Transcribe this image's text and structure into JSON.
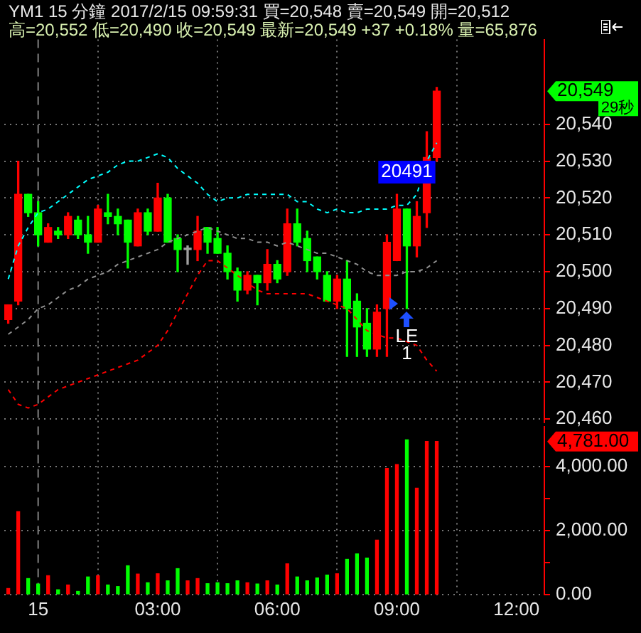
{
  "chart_data": [
    {
      "type": "candlestick",
      "title": "YM1 15 分鐘 2017/2/15 09:59:31 買=20,548 賣=20,549 開=20,512",
      "subtitle": "高=20,552 低=20,490 收=20,549 最新=20,549 +37 +0.18% 量=65,876",
      "x": [
        "2017-02-14T23:15",
        "2017-02-14T23:30",
        "2017-02-14T23:45",
        "2017-02-15T00:00",
        "2017-02-15T00:15",
        "2017-02-15T00:30",
        "2017-02-15T00:45",
        "2017-02-15T01:00",
        "2017-02-15T01:15",
        "2017-02-15T01:30",
        "2017-02-15T01:45",
        "2017-02-15T02:00",
        "2017-02-15T02:15",
        "2017-02-15T02:30",
        "2017-02-15T02:45",
        "2017-02-15T03:00",
        "2017-02-15T03:15",
        "2017-02-15T03:30",
        "2017-02-15T03:45",
        "2017-02-15T04:00",
        "2017-02-15T04:15",
        "2017-02-15T04:30",
        "2017-02-15T04:45",
        "2017-02-15T05:00",
        "2017-02-15T05:15",
        "2017-02-15T05:30",
        "2017-02-15T05:45",
        "2017-02-15T06:00",
        "2017-02-15T06:15",
        "2017-02-15T06:30",
        "2017-02-15T06:45",
        "2017-02-15T07:00",
        "2017-02-15T07:15",
        "2017-02-15T07:30",
        "2017-02-15T07:45",
        "2017-02-15T08:00",
        "2017-02-15T08:15",
        "2017-02-15T08:30",
        "2017-02-15T08:45",
        "2017-02-15T09:00",
        "2017-02-15T09:15",
        "2017-02-15T09:30",
        "2017-02-15T09:45",
        "2017-02-15T10:00"
      ],
      "ohlc": [
        [
          20487,
          20491,
          20486,
          20491
        ],
        [
          20492,
          20530,
          20491,
          20521
        ],
        [
          20521,
          20521,
          20515,
          20516
        ],
        [
          20516,
          20519,
          20507,
          20510
        ],
        [
          20508,
          20513,
          20508,
          20512
        ],
        [
          20511,
          20512,
          20509,
          20510
        ],
        [
          20510,
          20516,
          20509,
          20515
        ],
        [
          20514,
          20515,
          20509,
          20510
        ],
        [
          20510,
          20515,
          20505,
          20508
        ],
        [
          20508,
          20518,
          20508,
          20517
        ],
        [
          20516,
          20521,
          20513,
          20515
        ],
        [
          20515,
          20517,
          20510,
          20513
        ],
        [
          20514,
          20514,
          20501,
          20508
        ],
        [
          20507,
          20517,
          20507,
          20516
        ],
        [
          20516,
          20517,
          20510,
          20511
        ],
        [
          20511,
          20524,
          20511,
          20520
        ],
        [
          20520,
          20521,
          20508,
          20508
        ],
        [
          20509,
          20510,
          20500,
          20506
        ],
        [
          20506,
          20507,
          20502,
          20506
        ],
        [
          20506,
          20515,
          20503,
          20511
        ],
        [
          20512,
          20512,
          20505,
          20508
        ],
        [
          20509,
          20512,
          20505,
          20505
        ],
        [
          20505,
          20507,
          20498,
          20500
        ],
        [
          20500,
          20501,
          20492,
          20495
        ],
        [
          20495,
          20500,
          20494,
          20499
        ],
        [
          20499,
          20499,
          20491,
          20497
        ],
        [
          20497,
          20506,
          20495,
          20502
        ],
        [
          20502,
          20503,
          20497,
          20498
        ],
        [
          20500,
          20517,
          20499,
          20513
        ],
        [
          20513,
          20517,
          20507,
          20508
        ],
        [
          20509,
          20511,
          20500,
          20503
        ],
        [
          20504,
          20504,
          20498,
          20500
        ],
        [
          20499,
          20500,
          20492,
          20492
        ],
        [
          20492,
          20499,
          20490,
          20498
        ],
        [
          20498,
          20503,
          20477,
          20490
        ],
        [
          20492,
          20494,
          20477,
          20485
        ],
        [
          20486,
          20490,
          20477,
          20479
        ],
        [
          20479,
          20491,
          20477,
          20489
        ],
        [
          20490,
          20510,
          20477,
          20508
        ],
        [
          20503,
          20521,
          20503,
          20517
        ],
        [
          20517,
          20517,
          20490,
          20507
        ],
        [
          20507,
          20519,
          20504,
          20515
        ],
        [
          20516,
          20538,
          20512,
          20531
        ],
        [
          20531,
          20550,
          20530,
          20549
        ]
      ],
      "colors": [
        "#ff0000",
        "#ff0000",
        "#00ff00",
        "#00ff00",
        "#ff0000",
        "#00ff00",
        "#ff0000",
        "#00ff00",
        "#00ff00",
        "#ff0000",
        "#00ff00",
        "#00ff00",
        "#00ff00",
        "#ff0000",
        "#00ff00",
        "#ff0000",
        "#00ff00",
        "#00ff00",
        "#a0a0a0",
        "#ff0000",
        "#00ff00",
        "#00ff00",
        "#00ff00",
        "#00ff00",
        "#ff0000",
        "#00ff00",
        "#ff0000",
        "#00ff00",
        "#ff0000",
        "#00ff00",
        "#00ff00",
        "#00ff00",
        "#00ff00",
        "#ff0000",
        "#00ff00",
        "#00ff00",
        "#00ff00",
        "#ff0000",
        "#ff0000",
        "#ff0000",
        "#00ff00",
        "#ff0000",
        "#ff0000",
        "#ff0000"
      ],
      "series": [
        {
          "type": "line",
          "color": "#00ffff",
          "line_style": "dashed",
          "values": [
            20498,
            20507,
            20512,
            20516,
            20517,
            20519,
            20521,
            20523,
            20525,
            20526,
            20527,
            20529,
            20530,
            20530,
            20531,
            20532,
            20531,
            20528,
            20526,
            20524,
            20521,
            20519,
            20520,
            20520,
            20521,
            20521,
            20521,
            20521,
            20521,
            20519,
            20519,
            20517,
            20516,
            20517,
            20516,
            20516,
            20517,
            20517,
            20517,
            20518,
            20518,
            20521,
            20530,
            20535
          ]
        },
        {
          "type": "line",
          "color": "#909090",
          "line_style": "dashed",
          "values": [
            20483,
            20485,
            20487,
            20490,
            20491,
            20493,
            20495,
            20496,
            20498,
            20499,
            20500,
            20502,
            20503,
            20504,
            20505,
            20506,
            20508,
            20509,
            20510,
            20511,
            20512,
            20511,
            20510,
            20509,
            20509,
            20508,
            20508,
            20507,
            20508,
            20507,
            20506,
            20505,
            20505,
            20504,
            20503,
            20502,
            20500,
            20499,
            20499,
            20499,
            20500,
            20500,
            20501,
            20503
          ]
        },
        {
          "type": "line",
          "color": "#ff0000",
          "line_style": "dashed",
          "values": [
            20468,
            20464,
            20463,
            20464,
            20466,
            20468,
            20469,
            20470,
            20471,
            20472,
            20473,
            20474,
            20475,
            20476,
            20478,
            20480,
            20484,
            20489,
            20494,
            20499,
            20503,
            20503,
            20501,
            20499,
            20497,
            20495,
            20494,
            20494,
            20494,
            20494,
            20494,
            20493,
            20492,
            20491,
            20490,
            20487,
            20484,
            20483,
            20482,
            20482,
            20481,
            20480,
            20476,
            20473
          ]
        }
      ],
      "xlim": [
        "2017-02-14T23:09",
        "2017-02-15T12:42"
      ],
      "xticks": [
        {
          "value": "2017-02-15T00:00",
          "label": null
        },
        {
          "value": "2017-02-15T03:00",
          "label": null
        },
        {
          "value": "2017-02-15T06:00",
          "label": null
        },
        {
          "value": "2017-02-15T09:00",
          "label": null
        },
        {
          "value": "2017-02-15T12:00",
          "label": null
        }
      ],
      "ylim": [
        20459,
        20563
      ],
      "yticks": [
        {
          "value": 20460,
          "label": "20,460"
        },
        {
          "value": 20470,
          "label": "20,470"
        },
        {
          "value": 20480,
          "label": "20,480"
        },
        {
          "value": 20490,
          "label": "20,490"
        },
        {
          "value": 20500,
          "label": "20,500"
        },
        {
          "value": 20510,
          "label": "20,510"
        },
        {
          "value": 20520,
          "label": "20,520"
        },
        {
          "value": 20530,
          "label": "20,530"
        },
        {
          "value": 20540,
          "label": "20,540"
        }
      ],
      "ref_lines": [
        {
          "axis": "x",
          "value": "2017-02-15T00:00",
          "color": "#808080",
          "line_style": "dashed"
        }
      ],
      "annotations": [
        {
          "text": "20491",
          "x": "2017-02-15T09:15",
          "y": 20527
        },
        {
          "text": "LE",
          "x": "2017-02-15T09:15",
          "y": 20490
        },
        "1",
        "20,549",
        "29秒"
      ],
      "grid": true,
      "tick_labels": "y"
    },
    {
      "type": "bar",
      "x": [
        "2017-02-14T23:15",
        "2017-02-14T23:30",
        "2017-02-14T23:45",
        "2017-02-15T00:00",
        "2017-02-15T00:15",
        "2017-02-15T00:30",
        "2017-02-15T00:45",
        "2017-02-15T01:00",
        "2017-02-15T01:15",
        "2017-02-15T01:30",
        "2017-02-15T01:45",
        "2017-02-15T02:00",
        "2017-02-15T02:15",
        "2017-02-15T02:30",
        "2017-02-15T02:45",
        "2017-02-15T03:00",
        "2017-02-15T03:15",
        "2017-02-15T03:30",
        "2017-02-15T03:45",
        "2017-02-15T04:00",
        "2017-02-15T04:15",
        "2017-02-15T04:30",
        "2017-02-15T04:45",
        "2017-02-15T05:00",
        "2017-02-15T05:15",
        "2017-02-15T05:30",
        "2017-02-15T05:45",
        "2017-02-15T06:00",
        "2017-02-15T06:15",
        "2017-02-15T06:30",
        "2017-02-15T06:45",
        "2017-02-15T07:00",
        "2017-02-15T07:15",
        "2017-02-15T07:30",
        "2017-02-15T07:45",
        "2017-02-15T08:00",
        "2017-02-15T08:15",
        "2017-02-15T08:30",
        "2017-02-15T08:45",
        "2017-02-15T09:00",
        "2017-02-15T09:15",
        "2017-02-15T09:30",
        "2017-02-15T09:45",
        "2017-02-15T10:00"
      ],
      "values": [
        190,
        2590,
        500,
        330,
        590,
        150,
        300,
        100,
        550,
        590,
        300,
        250,
        900,
        640,
        370,
        650,
        430,
        810,
        430,
        500,
        340,
        370,
        340,
        430,
        370,
        330,
        430,
        300,
        960,
        550,
        430,
        520,
        610,
        650,
        1100,
        1270,
        1140,
        1700,
        3940,
        4060,
        4830,
        3320,
        4780,
        4781
      ],
      "colors": [
        "#ff0000",
        "#ff0000",
        "#00ff00",
        "#00ff00",
        "#ff0000",
        "#00ff00",
        "#ff0000",
        "#00ff00",
        "#00ff00",
        "#ff0000",
        "#00ff00",
        "#00ff00",
        "#00ff00",
        "#ff0000",
        "#00ff00",
        "#ff0000",
        "#00ff00",
        "#00ff00",
        "#ff0000",
        "#ff0000",
        "#00ff00",
        "#00ff00",
        "#00ff00",
        "#00ff00",
        "#ff0000",
        "#00ff00",
        "#ff0000",
        "#00ff00",
        "#ff0000",
        "#00ff00",
        "#00ff00",
        "#00ff00",
        "#00ff00",
        "#ff0000",
        "#00ff00",
        "#00ff00",
        "#00ff00",
        "#ff0000",
        "#ff0000",
        "#ff0000",
        "#00ff00",
        "#ff0000",
        "#ff0000",
        "#ff0000"
      ],
      "xlim": [
        "2017-02-14T23:09",
        "2017-02-15T12:42"
      ],
      "xticks": [
        {
          "value": "2017-02-15T00:00",
          "label": "15"
        },
        {
          "value": "2017-02-15T03:00",
          "label": "03:00"
        },
        {
          "value": "2017-02-15T06:00",
          "label": "06:00"
        },
        {
          "value": "2017-02-15T09:00",
          "label": "09:00"
        },
        {
          "value": "2017-02-15T12:00",
          "label": "12:00"
        }
      ],
      "ylim": [
        0,
        5250
      ],
      "yticks": [
        {
          "value": 0,
          "label": "0.00"
        },
        {
          "value": 1000,
          "label": null
        },
        {
          "value": 2000,
          "label": "2,000.00"
        },
        {
          "value": 3000,
          "label": null
        },
        {
          "value": 4000,
          "label": "4,000.00"
        }
      ],
      "ref_lines": [
        {
          "axis": "x",
          "value": "2017-02-15T00:00",
          "color": "#808080",
          "line_style": "dashed"
        }
      ],
      "annotations": [
        "4,781.00"
      ],
      "grid": true
    }
  ]
}
